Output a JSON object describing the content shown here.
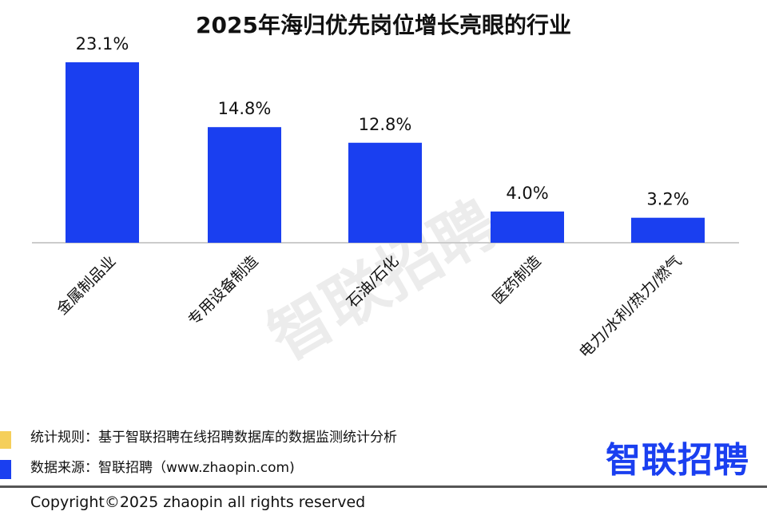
{
  "chart_data": {
    "type": "bar",
    "title": "2025年海归优先岗位增长亮眼的行业",
    "categories": [
      "金属制品业",
      "专用设备制造",
      "石油/石化",
      "医药制造",
      "电力/水利/热力/燃气"
    ],
    "values": [
      23.1,
      14.8,
      12.8,
      4.0,
      3.2
    ],
    "data_labels": [
      "23.1%",
      "14.8%",
      "12.8%",
      "4.0%",
      "3.2%"
    ],
    "xlabel": "",
    "ylabel": "",
    "ylim": [
      0,
      23.1
    ],
    "grid": false,
    "bar_color": "#1a3ff0"
  },
  "watermark": "智联招聘",
  "footer": {
    "rule_note": "统计规则：基于智联招聘在线招聘数据库的数据监测统计分析",
    "source_note": "数据来源：智联招聘（www.zhaopin.com)",
    "logo": "智联招聘",
    "copyright": "Copyright©2025 zhaopin all rights reserved",
    "colors": {
      "yellow": "#f5cf5a",
      "blue": "#1a3ff0"
    }
  }
}
